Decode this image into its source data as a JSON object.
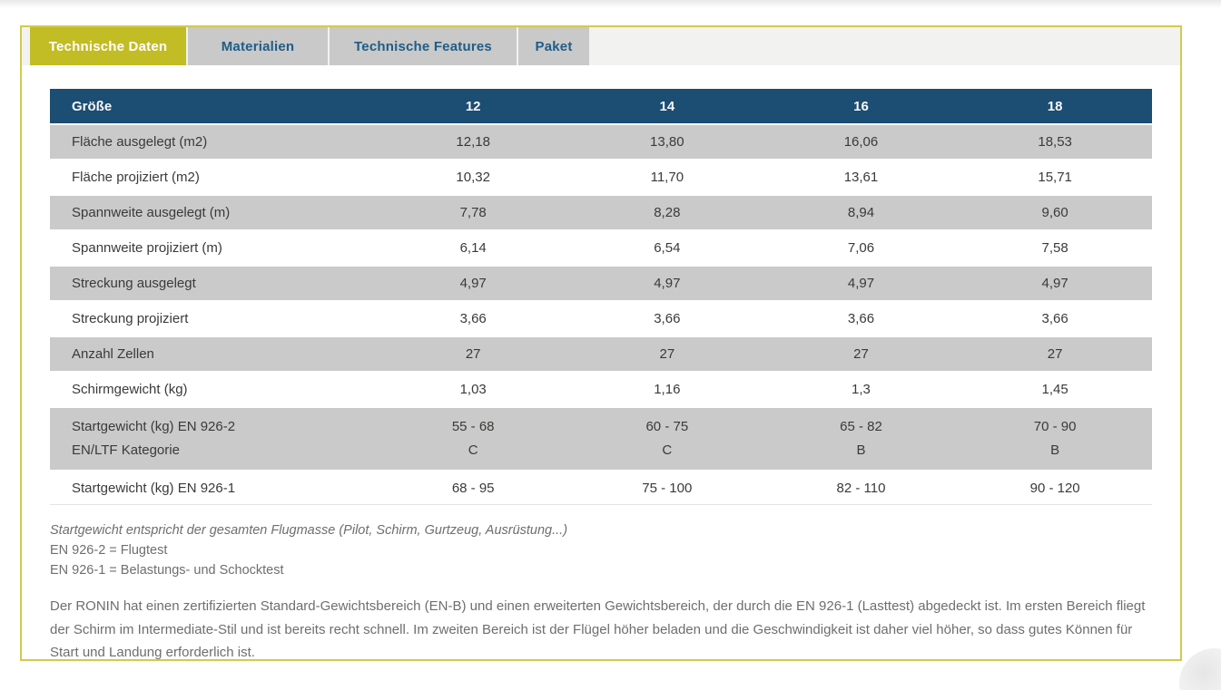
{
  "tabs": [
    {
      "label": "Technische Daten",
      "active": true
    },
    {
      "label": "Materialien",
      "active": false
    },
    {
      "label": "Technische Features",
      "active": false
    },
    {
      "label": "Paket",
      "active": false
    }
  ],
  "table": {
    "header_label": "Größe",
    "columns": [
      "12",
      "14",
      "16",
      "18"
    ],
    "rows": [
      {
        "label": "Fläche ausgelegt (m2)",
        "values": [
          "12,18",
          "13,80",
          "16,06",
          "18,53"
        ]
      },
      {
        "label": "Fläche projiziert (m2)",
        "values": [
          "10,32",
          "11,70",
          "13,61",
          "15,71"
        ]
      },
      {
        "label": "Spannweite ausgelegt (m)",
        "values": [
          "7,78",
          "8,28",
          "8,94",
          "9,60"
        ]
      },
      {
        "label": "Spannweite projiziert (m)",
        "values": [
          "6,14",
          "6,54",
          "7,06",
          "7,58"
        ]
      },
      {
        "label": "Streckung ausgelegt",
        "values": [
          "4,97",
          "4,97",
          "4,97",
          "4,97"
        ]
      },
      {
        "label": "Streckung projiziert",
        "values": [
          "3,66",
          "3,66",
          "3,66",
          "3,66"
        ]
      },
      {
        "label": "Anzahl Zellen",
        "values": [
          "27",
          "27",
          "27",
          "27"
        ]
      },
      {
        "label": "Schirmgewicht (kg)",
        "values": [
          "1,03",
          "1,16",
          "1,3",
          "1,45"
        ]
      },
      {
        "label": "Startgewicht (kg) EN 926-2",
        "label2": "EN/LTF Kategorie",
        "values": [
          "55 - 68",
          "60 - 75",
          "65 - 82",
          "70 - 90"
        ],
        "values2": [
          "C",
          "C",
          "B",
          "B"
        ]
      },
      {
        "label": "Startgewicht (kg) EN 926-1",
        "values": [
          "68 - 95",
          "75 - 100",
          "82 - 110",
          "90 - 120"
        ]
      }
    ]
  },
  "notes": [
    {
      "text": "Startgewicht entspricht der gesamten Flugmasse (Pilot, Schirm, Gurtzeug, Ausrüstung...)",
      "italic": true
    },
    {
      "text": "EN 926-2 = Flugtest",
      "italic": false
    },
    {
      "text": "EN 926-1 = Belastungs- und Schocktest",
      "italic": false
    }
  ],
  "paragraph": "Der RONIN hat einen zertifizierten Standard-Gewichtsbereich (EN-B) und einen erweiterten Gewichtsbereich, der durch die EN 926-1 (Lasttest) abgedeckt ist. Im ersten Bereich fliegt der Schirm im Intermediate-Stil und ist bereits recht schnell. Im zweiten Bereich ist der Flügel höher beladen und die Geschwindigkeit ist daher viel höher, so dass gutes Können für Start und Landung erforderlich ist.",
  "colors": {
    "accent_yellow": "#c2bc25",
    "border_yellow": "#d2cb4d",
    "header_blue": "#1c4d72",
    "tab_text_blue": "#205d87",
    "row_gray": "#cacaca"
  }
}
